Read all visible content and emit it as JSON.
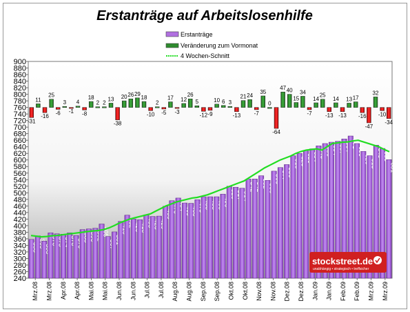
{
  "chart_data": {
    "type": "bar",
    "title": "Erstanträge auf Arbeitslosenhilfe",
    "ylim": [
      240,
      900
    ],
    "y_ticks": [
      240,
      260,
      280,
      300,
      320,
      340,
      360,
      380,
      400,
      420,
      440,
      460,
      480,
      500,
      520,
      540,
      560,
      580,
      600,
      620,
      640,
      660,
      680,
      700,
      720,
      740,
      760,
      780,
      800,
      820,
      840,
      860,
      880,
      900
    ],
    "x_tick_labels": [
      "Mrz.08",
      "Mrz.08",
      "Apr.08",
      "Apr.08",
      "Mai.08",
      "Mai.08",
      "Jun.08",
      "Jun.08",
      "Jul.08",
      "Jul.08",
      "Aug.08",
      "Aug.08",
      "Sep.08",
      "Sep.08",
      "Okt.08",
      "Okt.08",
      "Nov.08",
      "Nov.08",
      "Dez.08",
      "Dez.08",
      "Jan.09",
      "Jan.09",
      "Feb.09",
      "Feb.09",
      "Mrz.09",
      "Mrz.09"
    ],
    "legend_placement": "top-right",
    "grid": false,
    "series": [
      {
        "name": "Erstanträge",
        "kind": "bar",
        "color": "#b070e0",
        "values": [
          358,
          369,
          353,
          378,
          375,
          374,
          378,
          370,
          388,
          390,
          392,
          405,
          367,
          381,
          413,
          432,
          420,
          418,
          433,
          428,
          429,
          459,
          476,
          484,
          469,
          468,
          479,
          488,
          488,
          488,
          496,
          520,
          517,
          514,
          542,
          542,
          552,
          538,
          566,
          577,
          586,
          613,
          620,
          629,
          634,
          643,
          650,
          654,
          657,
          664,
          673,
          650,
          626,
          613,
          645,
          635,
          601
        ],
        "labels": [
          "358",
          "369",
          "353",
          "378",
          "375",
          "374",
          "378",
          "370",
          "388",
          "390",
          "392",
          "405",
          "367",
          "381",
          "413",
          "432",
          "420",
          "418",
          "433",
          "428",
          "429",
          "459",
          "476",
          "484",
          "469",
          "468",
          "479",
          "488",
          "488",
          "488",
          "496",
          "520",
          "517",
          "514",
          "542",
          "542",
          "552",
          "538",
          "566",
          "577",
          "586",
          "613",
          "620",
          "629",
          "634",
          "643",
          "650",
          "654",
          "657",
          "664",
          "673",
          "650",
          "626",
          "613",
          "645",
          "635",
          "601"
        ]
      },
      {
        "name": "Veränderung zum Vormonat",
        "kind": "change-bar",
        "color": "#2e8b2e",
        "negative_color": "#e00000",
        "values": [
          -31,
          11,
          -16,
          25,
          -6,
          3,
          -1,
          4,
          -8,
          18,
          2,
          2,
          13,
          -38,
          20,
          26,
          29,
          18,
          -10,
          2,
          -5,
          17,
          -3,
          12,
          26,
          5,
          -12,
          -9,
          10,
          6,
          3,
          -13,
          21,
          24,
          -7,
          35,
          0,
          -64,
          47,
          40,
          15,
          34,
          -7,
          14,
          25,
          -13,
          14,
          -13,
          13,
          17,
          -16,
          -47,
          32,
          -10,
          -34
        ],
        "labels": [
          "-31",
          "11",
          "-16",
          "25",
          "-6",
          "3",
          "-1",
          "4",
          "-8",
          "18",
          "2",
          "2",
          "13",
          "-38",
          "20",
          "26",
          "29",
          "18",
          "-10",
          "2",
          "-5",
          "17",
          "-3",
          "12",
          "26",
          "5",
          "-12",
          "-9",
          "10",
          "6",
          "3",
          "-13",
          "21",
          "24",
          "-7",
          "35",
          "0",
          "-64",
          "47",
          "40",
          "15",
          "34",
          "-7",
          "14",
          "25",
          "-13",
          "14",
          "-13",
          "13",
          "17",
          "-16",
          "-47",
          "32",
          "-10",
          "-34"
        ]
      },
      {
        "name": "4 Wochen-Schnitt",
        "kind": "line",
        "color": "#22dd22",
        "values": [
          370,
          368,
          366,
          367,
          369,
          370,
          372,
          374,
          376,
          378,
          380,
          382,
          384,
          385,
          388,
          393,
          400,
          408,
          414,
          420,
          424,
          428,
          432,
          436,
          444,
          452,
          460,
          466,
          472,
          476,
          480,
          484,
          486,
          490,
          494,
          500,
          506,
          512,
          518,
          524,
          530,
          536,
          546,
          556,
          566,
          576,
          584,
          592,
          600,
          606,
          612,
          620,
          626,
          630,
          632,
          634,
          630,
          640,
          650,
          652,
          654,
          655,
          658,
          660,
          655,
          650,
          645,
          640,
          632,
          625
        ]
      }
    ]
  },
  "watermark": {
    "brand": "stockstreet.de",
    "tagline": "unabhängig • strategisch • treffsicher"
  }
}
